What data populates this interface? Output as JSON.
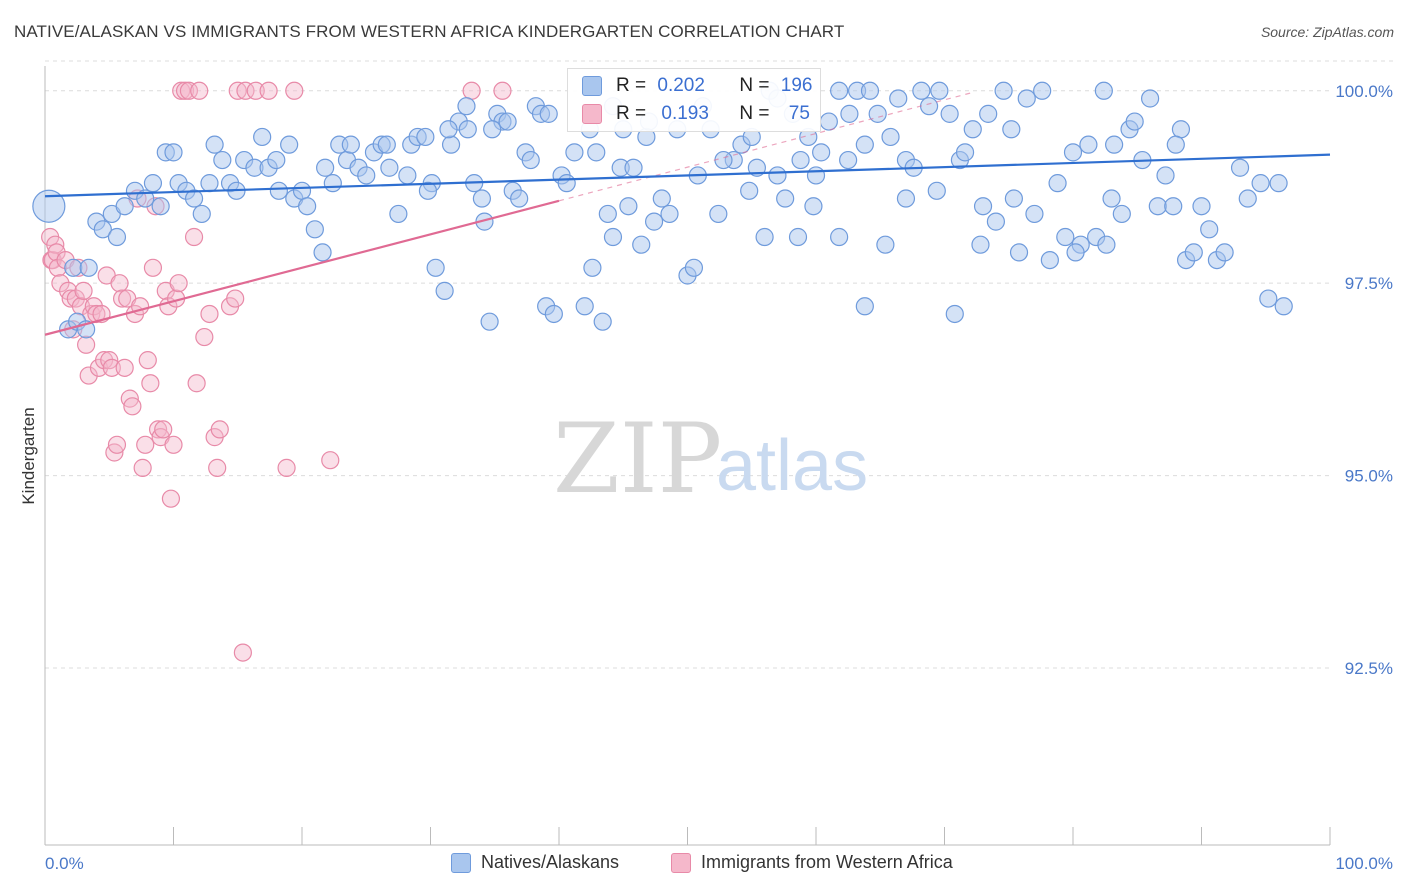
{
  "title": "NATIVE/ALASKAN VS IMMIGRANTS FROM WESTERN AFRICA KINDERGARTEN CORRELATION CHART",
  "source": "Source: ZipAtlas.com",
  "watermark": {
    "zip": "ZIP",
    "atlas": "atlas"
  },
  "colors": {
    "blue_fill": "#a9c6ee",
    "blue_stroke": "#6f9bdc",
    "blue_line": "#2f6fd0",
    "pink_fill": "#f5b8cb",
    "pink_stroke": "#e88aa8",
    "pink_line": "#e06a93",
    "grid": "#dcdcdc",
    "tick_label": "#4a78c8"
  },
  "legend_box": {
    "rows": [
      {
        "r_label": "R = ",
        "r_value": "0.202",
        "n_label": "N = ",
        "n_value": "196"
      },
      {
        "r_label": "R = ",
        "r_value": "0.193",
        "n_label": "N = ",
        "n_value": "75"
      }
    ]
  },
  "legend_bottom": [
    "Natives/Alaskans",
    "Immigrants from Western Africa"
  ],
  "chart_data": {
    "type": "scatter",
    "title": "NATIVE/ALASKAN VS IMMIGRANTS FROM WESTERN AFRICA KINDERGARTEN CORRELATION CHART",
    "xlabel": "",
    "ylabel": "Kindergarten",
    "x_tick_labels": [
      "0.0%",
      "100.0%"
    ],
    "y_tick_labels": [
      "100.0%",
      "97.5%",
      "95.0%",
      "92.5%"
    ],
    "y_ticks": [
      100.0,
      97.5,
      95.0,
      92.5
    ],
    "xlim": [
      0,
      100
    ],
    "ylim": [
      90.2,
      100.4
    ],
    "grid": true,
    "legend_placement": "bottom",
    "series": [
      {
        "name": "Natives/Alaskans",
        "R": 0.202,
        "N": 196,
        "trend": {
          "x": [
            0,
            100
          ],
          "y": [
            98.63,
            99.17
          ]
        },
        "points": [
          [
            0.3,
            98.5
          ],
          [
            1.8,
            96.9
          ],
          [
            2.2,
            97.7
          ],
          [
            2.5,
            97.0
          ],
          [
            3.2,
            96.9
          ],
          [
            3.4,
            97.7
          ],
          [
            4.0,
            98.3
          ],
          [
            4.5,
            98.2
          ],
          [
            5.2,
            98.4
          ],
          [
            5.6,
            98.1
          ],
          [
            6.2,
            98.5
          ],
          [
            7.0,
            98.7
          ],
          [
            7.8,
            98.6
          ],
          [
            8.4,
            98.8
          ],
          [
            9.0,
            98.5
          ],
          [
            9.4,
            99.2
          ],
          [
            10.0,
            99.2
          ],
          [
            10.4,
            98.8
          ],
          [
            11.0,
            98.7
          ],
          [
            11.6,
            98.6
          ],
          [
            12.2,
            98.4
          ],
          [
            12.8,
            98.8
          ],
          [
            13.2,
            99.3
          ],
          [
            13.8,
            99.1
          ],
          [
            14.4,
            98.8
          ],
          [
            14.9,
            98.7
          ],
          [
            15.5,
            99.1
          ],
          [
            16.3,
            99.0
          ],
          [
            16.9,
            99.4
          ],
          [
            17.4,
            99.0
          ],
          [
            18.0,
            99.1
          ],
          [
            18.2,
            98.7
          ],
          [
            19.0,
            99.3
          ],
          [
            19.4,
            98.6
          ],
          [
            20.0,
            98.7
          ],
          [
            20.4,
            98.5
          ],
          [
            21.0,
            98.2
          ],
          [
            21.6,
            97.9
          ],
          [
            21.8,
            99.0
          ],
          [
            22.4,
            98.8
          ],
          [
            22.9,
            99.3
          ],
          [
            23.5,
            99.1
          ],
          [
            23.8,
            99.3
          ],
          [
            24.4,
            99.0
          ],
          [
            25.0,
            98.9
          ],
          [
            25.6,
            99.2
          ],
          [
            26.2,
            99.3
          ],
          [
            26.8,
            99.0
          ],
          [
            27.5,
            98.4
          ],
          [
            28.2,
            98.9
          ],
          [
            28.5,
            99.3
          ],
          [
            29.0,
            99.4
          ],
          [
            29.6,
            99.4
          ],
          [
            30.1,
            98.8
          ],
          [
            30.4,
            97.7
          ],
          [
            31.1,
            97.4
          ],
          [
            31.6,
            99.3
          ],
          [
            32.2,
            99.6
          ],
          [
            32.8,
            99.8
          ],
          [
            32.9,
            99.5
          ],
          [
            33.4,
            98.8
          ],
          [
            34.0,
            98.6
          ],
          [
            34.2,
            98.3
          ],
          [
            34.6,
            97.0
          ],
          [
            35.2,
            99.7
          ],
          [
            35.6,
            99.6
          ],
          [
            36.0,
            99.6
          ],
          [
            36.4,
            98.7
          ],
          [
            36.9,
            98.6
          ],
          [
            37.4,
            99.2
          ],
          [
            37.8,
            99.1
          ],
          [
            38.2,
            99.8
          ],
          [
            38.6,
            99.7
          ],
          [
            39.0,
            97.2
          ],
          [
            39.6,
            97.1
          ],
          [
            40.2,
            98.9
          ],
          [
            40.6,
            98.8
          ],
          [
            41.2,
            99.2
          ],
          [
            42.0,
            97.2
          ],
          [
            42.4,
            99.5
          ],
          [
            42.9,
            99.2
          ],
          [
            43.4,
            97.0
          ],
          [
            43.8,
            98.4
          ],
          [
            44.2,
            98.1
          ],
          [
            44.8,
            99.0
          ],
          [
            45.4,
            98.5
          ],
          [
            45.8,
            99.0
          ],
          [
            46.4,
            98.0
          ],
          [
            46.8,
            99.4
          ],
          [
            47.4,
            98.3
          ],
          [
            48.0,
            98.6
          ],
          [
            48.6,
            98.4
          ],
          [
            49.2,
            99.5
          ],
          [
            50.0,
            97.6
          ],
          [
            50.8,
            98.9
          ],
          [
            51.2,
            99.8
          ],
          [
            51.8,
            99.5
          ],
          [
            52.4,
            98.4
          ],
          [
            53.6,
            99.1
          ],
          [
            54.2,
            99.3
          ],
          [
            54.8,
            98.7
          ],
          [
            55.4,
            99.0
          ],
          [
            56.0,
            98.1
          ],
          [
            56.4,
            100.0
          ],
          [
            57.0,
            99.9
          ],
          [
            57.6,
            98.6
          ],
          [
            58.2,
            99.7
          ],
          [
            58.8,
            99.1
          ],
          [
            59.4,
            99.4
          ],
          [
            59.8,
            98.5
          ],
          [
            60.4,
            99.2
          ],
          [
            61.0,
            99.6
          ],
          [
            61.8,
            100.0
          ],
          [
            62.6,
            99.7
          ],
          [
            63.2,
            100.0
          ],
          [
            63.8,
            99.3
          ],
          [
            64.2,
            100.0
          ],
          [
            64.8,
            99.7
          ],
          [
            65.4,
            98.0
          ],
          [
            65.8,
            99.4
          ],
          [
            66.4,
            99.9
          ],
          [
            67.0,
            99.1
          ],
          [
            67.6,
            99.0
          ],
          [
            68.2,
            100.0
          ],
          [
            68.8,
            99.8
          ],
          [
            69.6,
            100.0
          ],
          [
            70.4,
            99.7
          ],
          [
            70.8,
            97.1
          ],
          [
            71.2,
            99.1
          ],
          [
            71.6,
            99.2
          ],
          [
            72.2,
            99.5
          ],
          [
            72.8,
            98.0
          ],
          [
            73.4,
            99.7
          ],
          [
            74.0,
            98.3
          ],
          [
            74.6,
            100.0
          ],
          [
            75.2,
            99.5
          ],
          [
            75.8,
            97.9
          ],
          [
            76.4,
            99.9
          ],
          [
            77.0,
            98.4
          ],
          [
            77.6,
            100.0
          ],
          [
            78.2,
            97.8
          ],
          [
            78.8,
            98.8
          ],
          [
            79.4,
            98.1
          ],
          [
            80.0,
            99.2
          ],
          [
            80.6,
            98.0
          ],
          [
            81.2,
            99.3
          ],
          [
            81.8,
            98.1
          ],
          [
            82.4,
            100.0
          ],
          [
            82.6,
            98.0
          ],
          [
            83.2,
            99.3
          ],
          [
            83.8,
            98.4
          ],
          [
            84.4,
            99.5
          ],
          [
            84.8,
            99.6
          ],
          [
            85.4,
            99.1
          ],
          [
            86.0,
            99.9
          ],
          [
            86.6,
            98.5
          ],
          [
            87.2,
            98.9
          ],
          [
            87.8,
            98.5
          ],
          [
            88.4,
            99.5
          ],
          [
            88.8,
            97.8
          ],
          [
            89.4,
            97.9
          ],
          [
            90.0,
            98.5
          ],
          [
            90.6,
            98.2
          ],
          [
            91.2,
            97.8
          ],
          [
            91.8,
            97.9
          ],
          [
            93.0,
            99.0
          ],
          [
            93.6,
            98.6
          ],
          [
            94.6,
            98.8
          ],
          [
            95.2,
            97.3
          ],
          [
            96.0,
            98.8
          ],
          [
            50.5,
            97.7
          ],
          [
            57.0,
            98.9
          ],
          [
            60.0,
            98.9
          ],
          [
            62.5,
            99.1
          ],
          [
            34.8,
            99.5
          ],
          [
            45.0,
            99.5
          ],
          [
            52.8,
            99.1
          ],
          [
            39.2,
            99.7
          ],
          [
            47.0,
            99.6
          ],
          [
            55.0,
            99.4
          ],
          [
            31.4,
            99.5
          ],
          [
            44.2,
            99.8
          ],
          [
            26.6,
            99.3
          ],
          [
            58.6,
            98.1
          ],
          [
            67.0,
            98.6
          ],
          [
            42.6,
            97.7
          ],
          [
            73.0,
            98.5
          ],
          [
            88.0,
            99.3
          ],
          [
            29.8,
            98.7
          ],
          [
            61.8,
            98.1
          ],
          [
            63.8,
            97.2
          ],
          [
            75.4,
            98.6
          ],
          [
            80.2,
            97.9
          ],
          [
            83.0,
            98.6
          ],
          [
            69.4,
            98.7
          ],
          [
            96.4,
            97.2
          ]
        ]
      },
      {
        "name": "Immigrants from Western Africa",
        "R": 0.193,
        "N": 75,
        "trend": {
          "x": [
            0,
            40
          ],
          "y": [
            96.83,
            98.57
          ]
        },
        "trend_extension": {
          "x": [
            40,
            72
          ],
          "y": [
            98.57,
            99.97
          ]
        },
        "points": [
          [
            0.4,
            98.1
          ],
          [
            0.5,
            97.8
          ],
          [
            0.6,
            97.8
          ],
          [
            0.8,
            98.0
          ],
          [
            0.9,
            97.9
          ],
          [
            1.0,
            97.7
          ],
          [
            1.2,
            97.5
          ],
          [
            1.6,
            97.8
          ],
          [
            1.8,
            97.4
          ],
          [
            2.0,
            97.3
          ],
          [
            2.2,
            96.9
          ],
          [
            2.4,
            97.3
          ],
          [
            2.6,
            97.7
          ],
          [
            2.8,
            97.2
          ],
          [
            3.0,
            97.4
          ],
          [
            3.2,
            96.7
          ],
          [
            3.4,
            96.3
          ],
          [
            3.6,
            97.1
          ],
          [
            3.8,
            97.2
          ],
          [
            4.0,
            97.1
          ],
          [
            4.2,
            96.4
          ],
          [
            4.4,
            97.1
          ],
          [
            4.6,
            96.5
          ],
          [
            4.8,
            97.6
          ],
          [
            5.0,
            96.5
          ],
          [
            5.2,
            96.4
          ],
          [
            5.4,
            95.3
          ],
          [
            5.6,
            95.4
          ],
          [
            5.8,
            97.5
          ],
          [
            6.0,
            97.3
          ],
          [
            6.2,
            96.4
          ],
          [
            6.4,
            97.3
          ],
          [
            6.6,
            96.0
          ],
          [
            6.8,
            95.9
          ],
          [
            7.0,
            97.1
          ],
          [
            7.2,
            98.6
          ],
          [
            7.4,
            97.2
          ],
          [
            7.6,
            95.1
          ],
          [
            7.8,
            95.4
          ],
          [
            8.0,
            96.5
          ],
          [
            8.2,
            96.2
          ],
          [
            8.4,
            97.7
          ],
          [
            8.6,
            98.5
          ],
          [
            8.8,
            95.6
          ],
          [
            9.0,
            95.5
          ],
          [
            9.2,
            95.6
          ],
          [
            9.4,
            97.4
          ],
          [
            9.6,
            97.2
          ],
          [
            9.8,
            94.7
          ],
          [
            10.0,
            95.4
          ],
          [
            10.2,
            97.3
          ],
          [
            10.4,
            97.5
          ],
          [
            10.6,
            100.0
          ],
          [
            10.9,
            100.0
          ],
          [
            11.2,
            100.0
          ],
          [
            11.6,
            98.1
          ],
          [
            11.8,
            96.2
          ],
          [
            12.0,
            100.0
          ],
          [
            12.4,
            96.8
          ],
          [
            12.8,
            97.1
          ],
          [
            13.2,
            95.5
          ],
          [
            13.4,
            95.1
          ],
          [
            13.6,
            95.6
          ],
          [
            14.4,
            97.2
          ],
          [
            14.8,
            97.3
          ],
          [
            15.0,
            100.0
          ],
          [
            15.6,
            100.0
          ],
          [
            16.4,
            100.0
          ],
          [
            17.4,
            100.0
          ],
          [
            18.8,
            95.1
          ],
          [
            19.4,
            100.0
          ],
          [
            22.2,
            95.2
          ],
          [
            15.4,
            92.7
          ],
          [
            33.2,
            100.0
          ],
          [
            35.6,
            100.0
          ]
        ]
      }
    ]
  }
}
